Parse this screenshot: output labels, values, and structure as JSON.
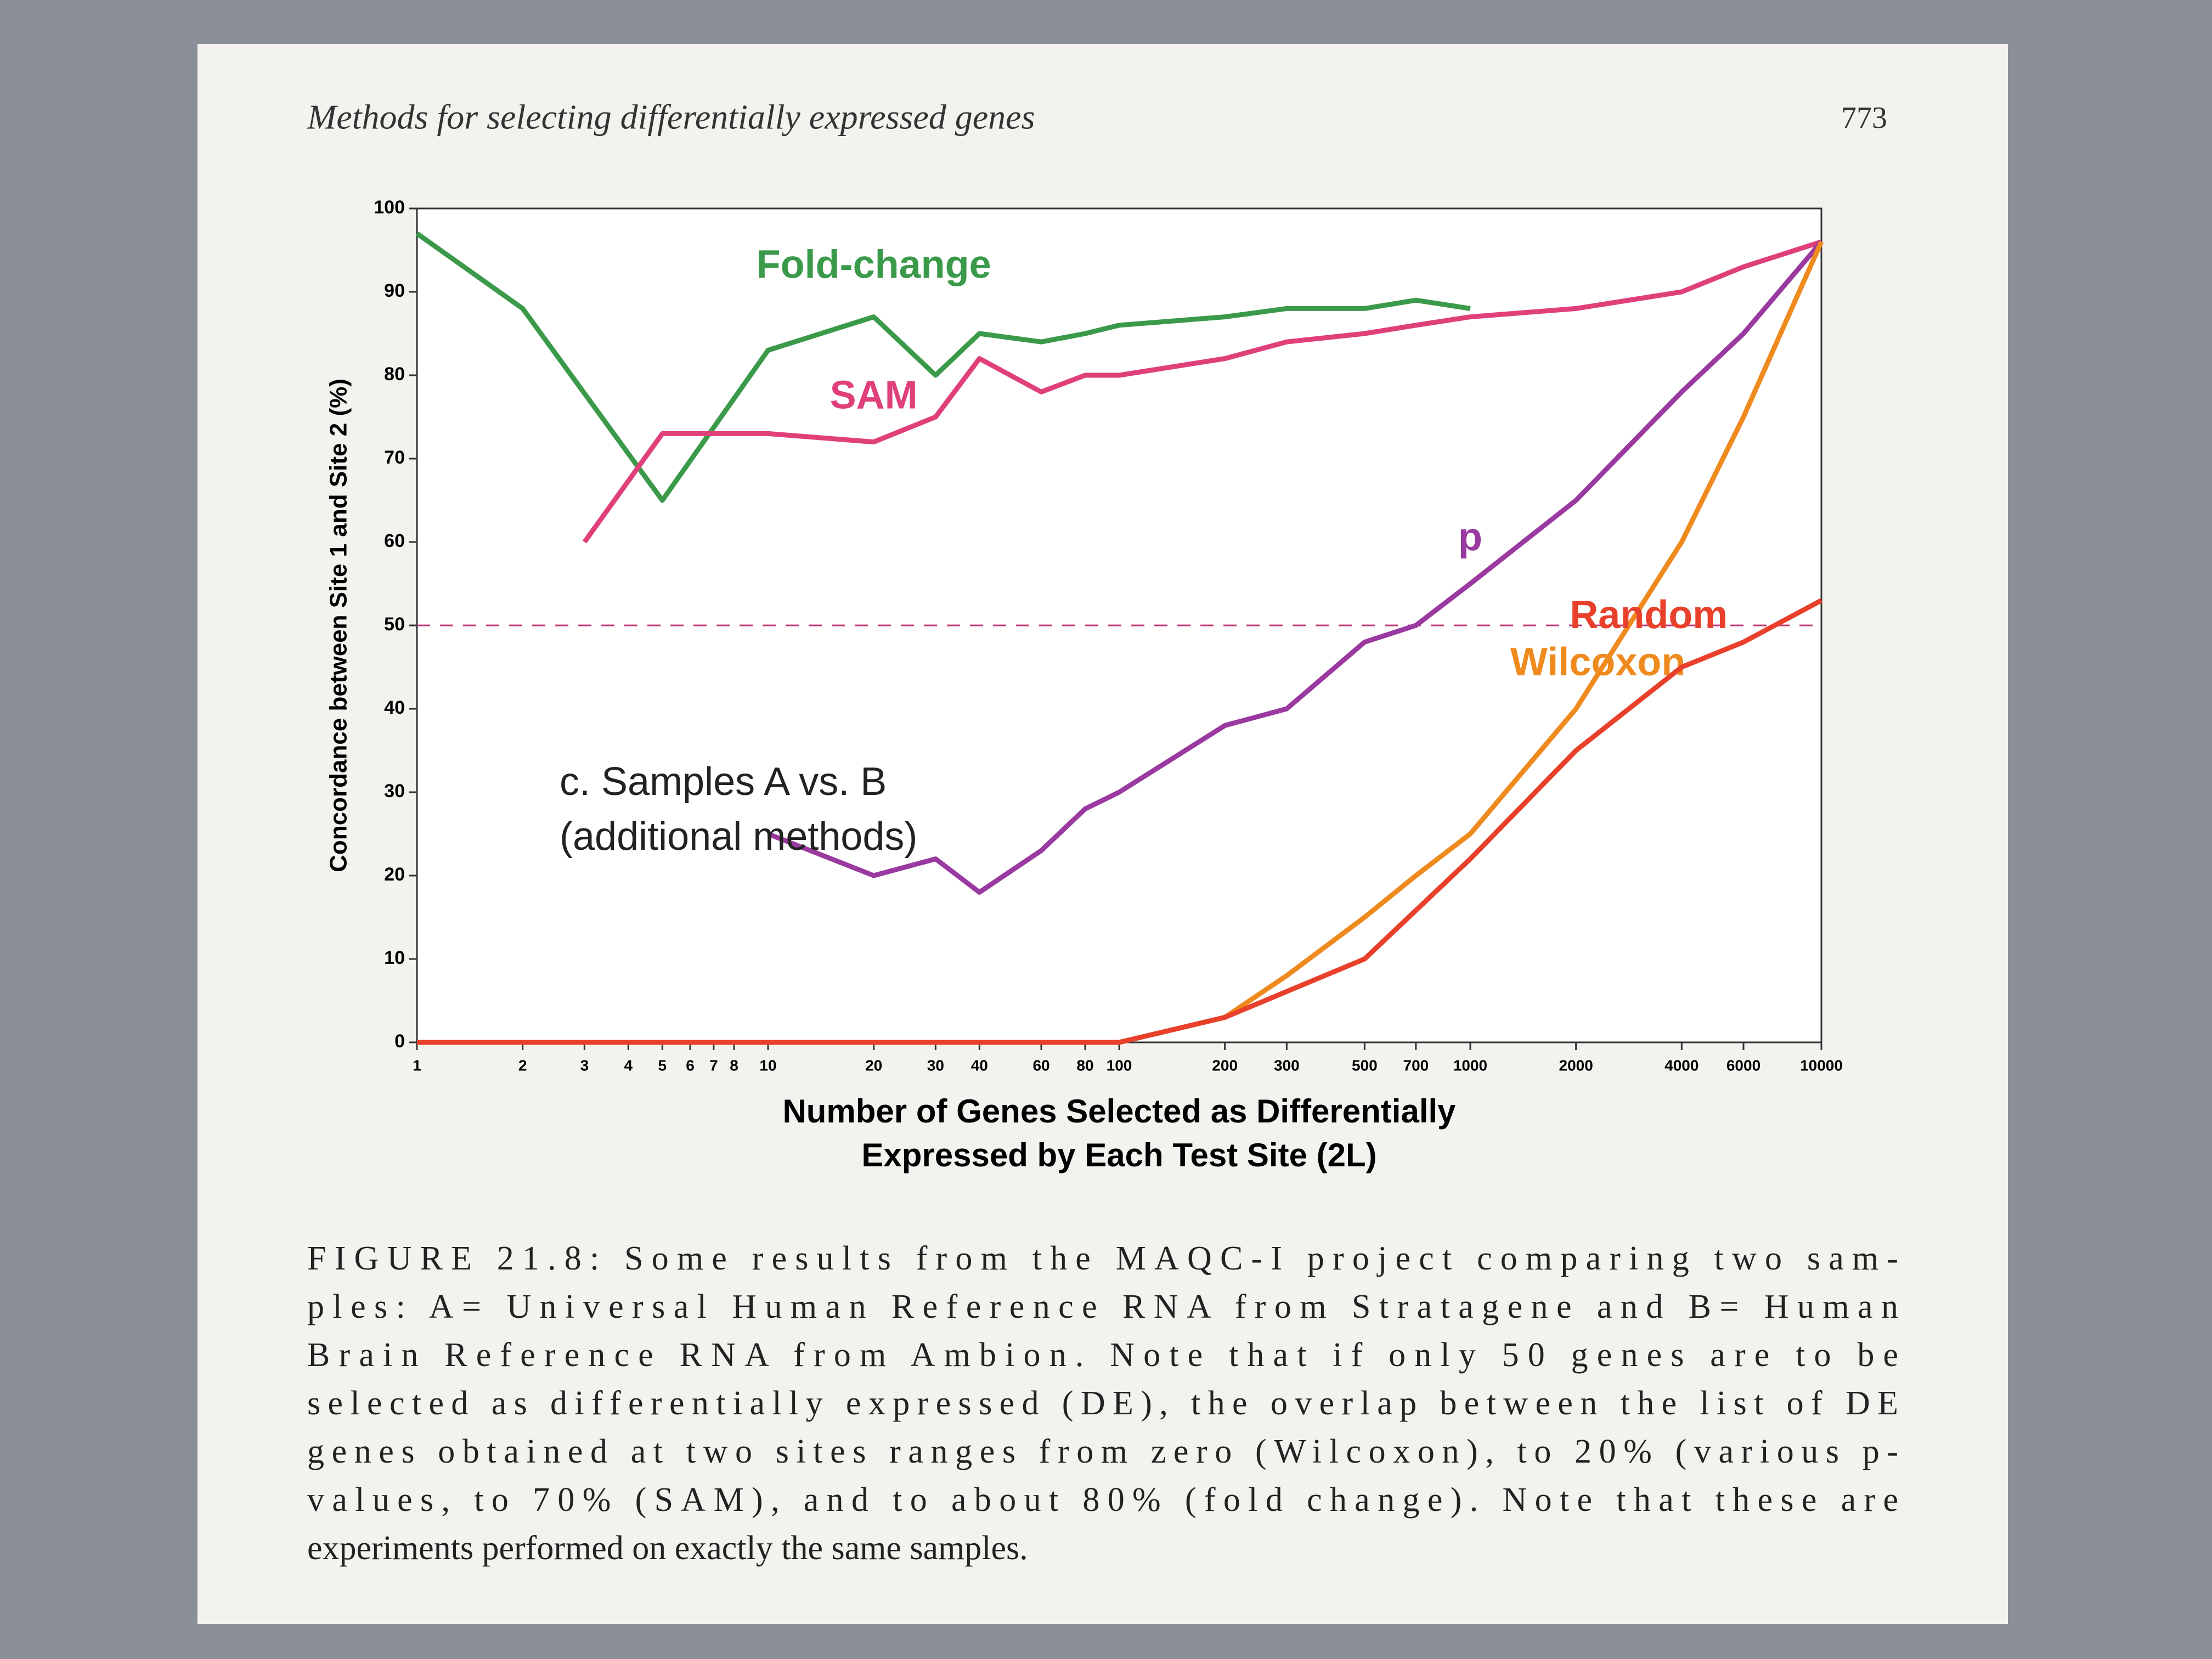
{
  "page": {
    "running_head": "Methods for selecting differentially expressed genes",
    "page_number": "773",
    "caption": [
      "FIGURE 21.8: Some results from the MAQC-I project comparing two sam-",
      "ples: A= Universal Human Reference RNA from Stratagene and B= Human",
      "Brain Reference RNA from Ambion. Note that if only 50 genes are to be",
      "selected as differentially expressed (DE), the overlap between the list of DE",
      "genes obtained at two sites ranges from zero (Wilcoxon), to 20% (various p-",
      "values, to 70% (SAM), and to about 80% (fold change). Note that these are",
      "experiments performed on exactly the same samples."
    ]
  },
  "chart_data": {
    "type": "line",
    "xscale": "log",
    "ylabel": "Concordance between Site 1 and Site 2 (%)",
    "xlabel": [
      "Number of Genes Selected as Differentially",
      "Expressed by Each Test Site (2L)"
    ],
    "annotation": [
      "c. Samples A vs. B",
      "(additional methods)"
    ],
    "xlim": [
      1,
      10000
    ],
    "xticks": [
      1,
      2,
      3,
      4,
      5,
      6,
      7,
      8,
      10,
      20,
      30,
      40,
      60,
      80,
      100,
      200,
      300,
      500,
      700,
      1000,
      2000,
      4000,
      6000,
      10000
    ],
    "ylim": [
      0,
      100
    ],
    "yticks": [
      0,
      10,
      20,
      30,
      40,
      50,
      60,
      70,
      80,
      90,
      100
    ],
    "reference_lines": [
      50
    ],
    "series": [
      {
        "name": "Fold-change",
        "color": "#3a9a4a",
        "x": [
          1,
          2,
          5,
          10,
          20,
          30,
          40,
          60,
          80,
          100,
          200,
          300,
          500,
          700,
          1000
        ],
        "values": [
          97,
          88,
          65,
          83,
          87,
          80,
          85,
          84,
          85,
          86,
          87,
          88,
          88,
          89,
          88
        ]
      },
      {
        "name": "SAM",
        "color": "#e0407a",
        "x": [
          3,
          5,
          10,
          20,
          30,
          40,
          60,
          80,
          100,
          200,
          300,
          500,
          700,
          1000,
          2000,
          4000,
          6000,
          10000
        ],
        "values": [
          60,
          73,
          73,
          72,
          75,
          82,
          78,
          80,
          80,
          82,
          84,
          85,
          86,
          87,
          88,
          90,
          93,
          96
        ]
      },
      {
        "name": "p",
        "color": "#9a3aa0",
        "x": [
          10,
          20,
          30,
          40,
          60,
          80,
          100,
          200,
          300,
          500,
          700,
          1000,
          2000,
          4000,
          6000,
          10000
        ],
        "values": [
          25,
          20,
          22,
          18,
          23,
          28,
          30,
          38,
          40,
          48,
          50,
          55,
          65,
          78,
          85,
          96
        ]
      },
      {
        "name": "Wilcoxon",
        "color": "#ef8a1e",
        "x": [
          100,
          200,
          300,
          500,
          700,
          1000,
          2000,
          4000,
          6000,
          10000
        ],
        "values": [
          0,
          3,
          8,
          15,
          20,
          25,
          40,
          60,
          75,
          96
        ]
      },
      {
        "name": "Random",
        "color": "#e8402a",
        "x": [
          1,
          2,
          3,
          10,
          100,
          200,
          500,
          1000,
          2000,
          4000,
          6000,
          10000
        ],
        "values": [
          0,
          0,
          0,
          0,
          0,
          3,
          10,
          22,
          35,
          45,
          48,
          53
        ]
      }
    ]
  }
}
